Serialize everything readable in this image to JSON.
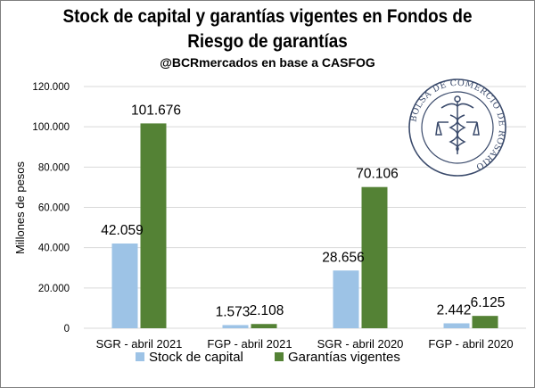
{
  "title_line1": "Stock de capital y garantías vigentes en Fondos de",
  "title_line2": "Riesgo de garantías",
  "subtitle": "@BCRmercados en base a CASFOG",
  "logo_text": "BOLSA DE COMERCIO DE ROSARIO",
  "chart_data": {
    "type": "bar",
    "categories": [
      "SGR - abril 2021",
      "FGP - abril 2021",
      "SGR - abril 2020",
      "FGP - abril 2020"
    ],
    "series": [
      {
        "name": "Stock de capital",
        "values": [
          42059,
          1573,
          28656,
          2442
        ],
        "labels": [
          "42.059",
          "1.573",
          "28.656",
          "2.442"
        ],
        "color": "#9dc3e6"
      },
      {
        "name": "Garantías vigentes",
        "values": [
          101676,
          2108,
          70106,
          6125
        ],
        "labels": [
          "101.676",
          "2.108",
          "70.106",
          "6.125"
        ],
        "color": "#548235"
      }
    ],
    "ylabel": "Millones de pesos",
    "ylim": [
      0,
      120000
    ],
    "yticks": [
      0,
      20000,
      40000,
      60000,
      80000,
      100000,
      120000
    ],
    "ytick_labels": [
      "0",
      "20.000",
      "40.000",
      "60.000",
      "80.000",
      "100.000",
      "120.000"
    ],
    "grid": true,
    "legend_position": "bottom"
  }
}
